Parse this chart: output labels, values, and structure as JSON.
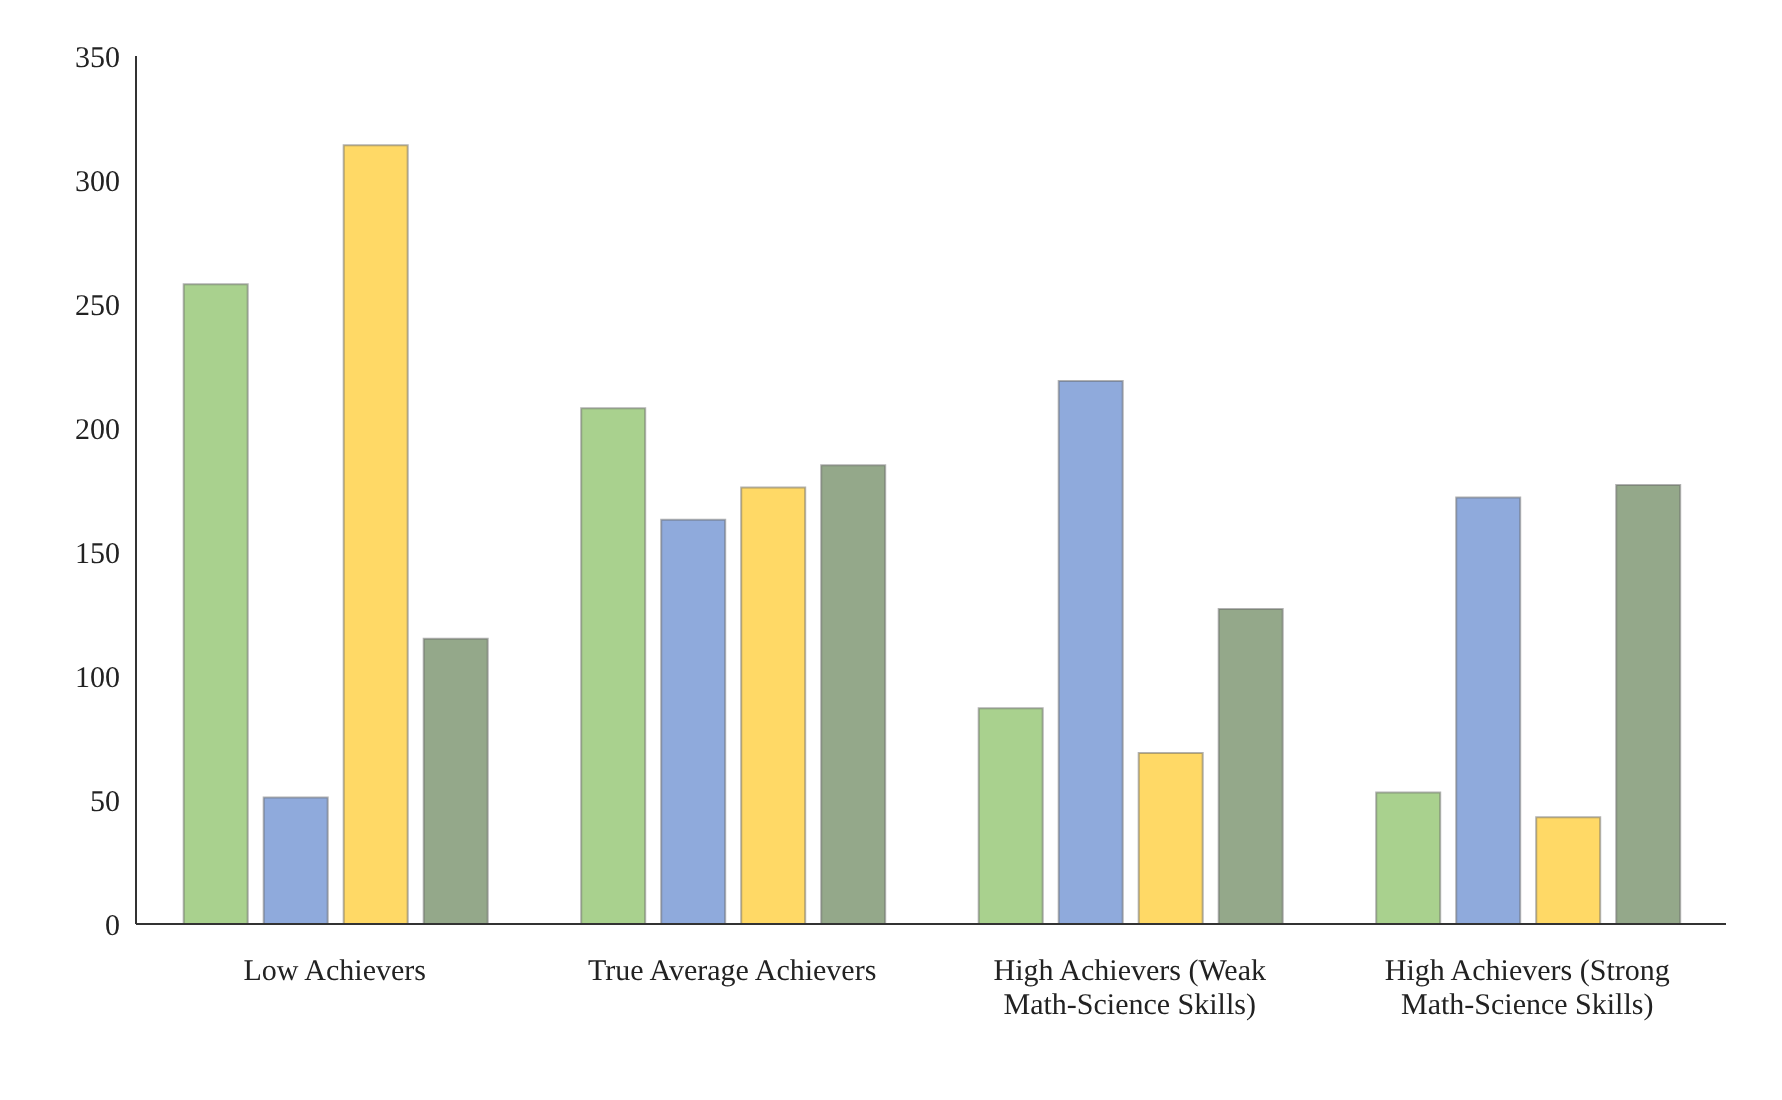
{
  "chart_data": {
    "type": "bar",
    "categories": [
      "Low Achievers",
      "True Average Achievers",
      "High Achievers (Weak Math-Science Skills)",
      "High Achievers (Strong Math-Science Skills)"
    ],
    "series": [
      {
        "color": "#a9d18e",
        "values": [
          258,
          208,
          87,
          53
        ]
      },
      {
        "color": "#8faadc",
        "values": [
          51,
          163,
          219,
          172
        ]
      },
      {
        "color": "#ffd966",
        "values": [
          314,
          176,
          69,
          43
        ]
      },
      {
        "color": "#94a88a",
        "values": [
          115,
          185,
          127,
          177
        ]
      }
    ],
    "ylim": [
      0,
      350
    ],
    "yticks": [
      0,
      50,
      100,
      150,
      200,
      250,
      300,
      350
    ],
    "grid": false,
    "legend": false
  }
}
